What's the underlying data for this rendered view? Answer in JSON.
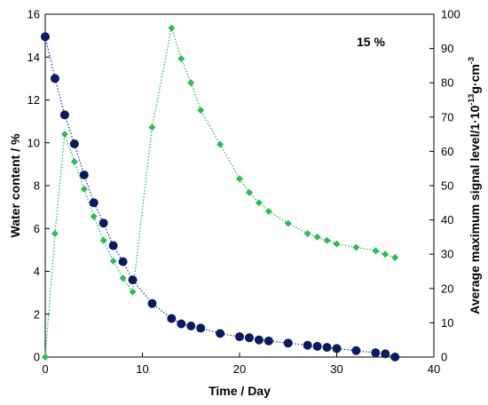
{
  "chart_data": {
    "type": "scatter",
    "xlabel": "Time / Day",
    "ylabel_left": "Water content / %",
    "ylabel_right_prefix": "Average maximum signal level/1·10",
    "ylabel_right_exp": "-13",
    "ylabel_right_mid": "g·cm",
    "ylabel_right_exp2": "-3",
    "annotation": "15 %",
    "xlim": [
      0,
      40
    ],
    "ylim_left": [
      0,
      16
    ],
    "ylim_right": [
      0,
      100
    ],
    "x_ticks": [
      0,
      10,
      20,
      30,
      40
    ],
    "y_left_ticks": [
      0,
      2,
      4,
      6,
      8,
      10,
      12,
      14,
      16
    ],
    "y_right_ticks": [
      0,
      10,
      20,
      30,
      40,
      50,
      60,
      70,
      80,
      90,
      100
    ],
    "grid": false,
    "series": [
      {
        "axis": "left",
        "marker": "circle",
        "color": "#0d1a5e",
        "line_color": "#2a3f9d",
        "x": [
          0,
          1,
          2,
          3,
          4,
          5,
          6,
          7,
          8,
          9,
          11,
          13,
          14,
          15,
          16,
          18,
          20,
          21,
          22,
          23,
          25,
          27,
          28,
          29,
          30,
          32,
          34,
          35,
          36
        ],
        "y": [
          14.95,
          13.0,
          11.3,
          9.95,
          8.5,
          7.2,
          6.25,
          5.2,
          4.45,
          3.6,
          2.5,
          1.8,
          1.55,
          1.45,
          1.35,
          1.1,
          0.95,
          0.9,
          0.8,
          0.75,
          0.65,
          0.55,
          0.5,
          0.45,
          0.4,
          0.3,
          0.2,
          0.15,
          0.0
        ]
      },
      {
        "axis": "right",
        "marker": "diamond",
        "color": "#2eb85a",
        "line_color": "#2eb85a",
        "x": [
          0,
          1,
          2,
          3,
          4,
          5,
          6,
          7,
          8,
          9,
          11,
          13,
          14,
          15,
          16,
          18,
          20,
          21,
          22,
          23,
          25,
          27,
          28,
          29,
          30,
          32,
          34,
          35,
          36
        ],
        "y": [
          0,
          36,
          65,
          57,
          49,
          41,
          34,
          28,
          23,
          19,
          67,
          96,
          87,
          80,
          72,
          62,
          52,
          48,
          45,
          42.5,
          39,
          36,
          35,
          34,
          33,
          32,
          31,
          30,
          29
        ]
      }
    ]
  }
}
